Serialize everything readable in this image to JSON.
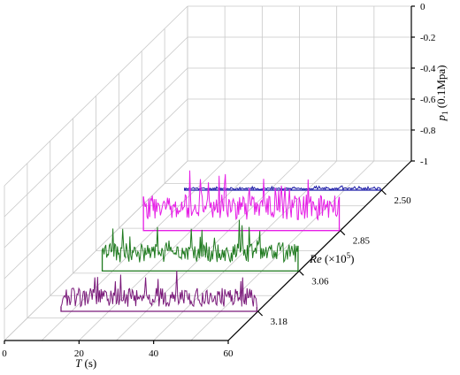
{
  "chart_data": {
    "type": "line",
    "projection": "3d-waterfall",
    "x_axis": {
      "label_var": "T",
      "label_unit": " (s)",
      "range": [
        0,
        60
      ],
      "ticks": [
        "0",
        "20",
        "40",
        "60"
      ]
    },
    "z_axis": {
      "label_var": "Re",
      "label_unit": " (×10",
      "label_exp": "5",
      "label_close": ")",
      "ticks": [
        "2.50",
        "2.85",
        "3.06",
        "3.18"
      ]
    },
    "y_axis": {
      "label_var": "p",
      "label_sub": "1",
      "label_unit": " (0.1Mpa)",
      "range": [
        -1,
        0
      ],
      "ticks": [
        "0",
        "-0.2",
        "-0.4",
        "-0.6",
        "-0.8",
        "-1"
      ]
    },
    "grid": true,
    "series": [
      {
        "re": "2.50",
        "color": "#1a1aa6",
        "mean": 0.01,
        "amplitude": 0.012,
        "seed": 11
      },
      {
        "re": "2.85",
        "color": "#e61fe6",
        "mean": 0.15,
        "amplitude": 0.16,
        "seed": 23
      },
      {
        "re": "3.06",
        "color": "#1f7a1f",
        "mean": 0.12,
        "amplitude": 0.13,
        "seed": 37
      },
      {
        "re": "3.18",
        "color": "#7a1a7a",
        "mean": 0.09,
        "amplitude": 0.12,
        "seed": 53
      }
    ]
  }
}
